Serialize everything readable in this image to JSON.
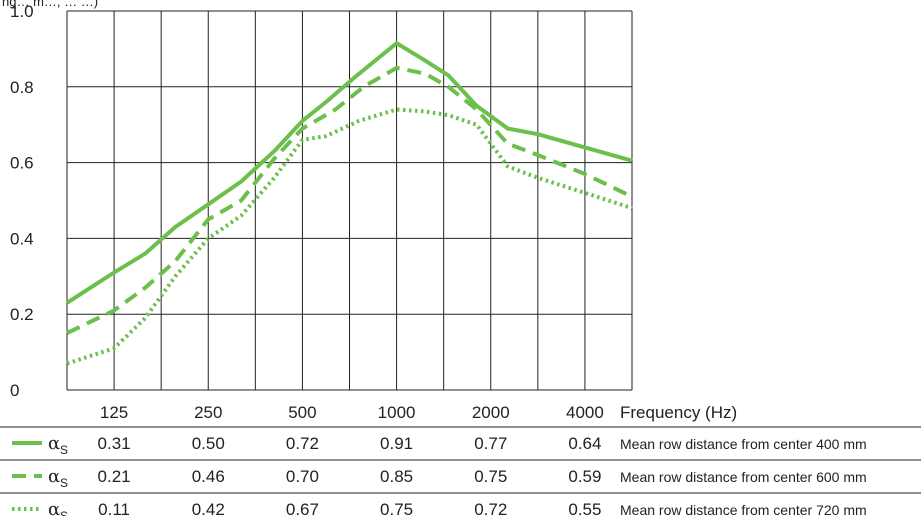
{
  "chart_data": {
    "type": "line",
    "title_fragment": "ng… m…, … …)",
    "x_unit_label": "Frequency (Hz)",
    "categories": [
      "125",
      "250",
      "500",
      "1000",
      "2000",
      "4000"
    ],
    "y_ticks": [
      "0",
      "0.2",
      "0.4",
      "0.6",
      "0.8",
      "1.0"
    ],
    "ylim": [
      0,
      1.0
    ],
    "grid": true,
    "color": "#6cbf4a",
    "series_symbol": "α",
    "series_subscript": "S",
    "series": [
      {
        "name": "Mean row distance from center 400 mm",
        "style": "solid",
        "values": [
          0.31,
          0.5,
          0.72,
          0.91,
          0.77,
          0.64
        ],
        "labels": [
          "0.31",
          "0.50",
          "0.72",
          "0.91",
          "0.77",
          "0.64"
        ],
        "curve": [
          [
            0.0,
            0.23
          ],
          [
            0.5,
            0.31
          ],
          [
            0.83,
            0.36
          ],
          [
            1.15,
            0.43
          ],
          [
            1.5,
            0.49
          ],
          [
            1.85,
            0.55
          ],
          [
            2.2,
            0.63
          ],
          [
            2.5,
            0.71
          ],
          [
            2.75,
            0.76
          ],
          [
            3.08,
            0.83
          ],
          [
            3.5,
            0.915
          ],
          [
            3.8,
            0.87
          ],
          [
            4.05,
            0.83
          ],
          [
            4.35,
            0.75
          ],
          [
            4.68,
            0.69
          ],
          [
            5.0,
            0.675
          ],
          [
            5.5,
            0.64
          ],
          [
            6.0,
            0.605
          ]
        ]
      },
      {
        "name": "Mean row distance from center 600 mm",
        "style": "dashed",
        "values": [
          0.21,
          0.46,
          0.7,
          0.85,
          0.75,
          0.59
        ],
        "labels": [
          "0.21",
          "0.46",
          "0.70",
          "0.85",
          "0.75",
          "0.59"
        ],
        "curve": [
          [
            0.0,
            0.15
          ],
          [
            0.5,
            0.21
          ],
          [
            0.83,
            0.27
          ],
          [
            1.15,
            0.34
          ],
          [
            1.5,
            0.45
          ],
          [
            1.85,
            0.5
          ],
          [
            2.2,
            0.61
          ],
          [
            2.5,
            0.69
          ],
          [
            2.85,
            0.74
          ],
          [
            3.15,
            0.8
          ],
          [
            3.5,
            0.85
          ],
          [
            3.8,
            0.835
          ],
          [
            4.05,
            0.8
          ],
          [
            4.35,
            0.74
          ],
          [
            4.68,
            0.65
          ],
          [
            5.0,
            0.62
          ],
          [
            5.5,
            0.57
          ],
          [
            6.0,
            0.51
          ]
        ]
      },
      {
        "name": "Mean row distance from center 720 mm",
        "style": "dotted",
        "values": [
          0.11,
          0.42,
          0.67,
          0.75,
          0.72,
          0.55
        ],
        "labels": [
          "0.11",
          "0.42",
          "0.67",
          "0.75",
          "0.72",
          "0.55"
        ],
        "curve": [
          [
            0.0,
            0.07
          ],
          [
            0.5,
            0.11
          ],
          [
            0.83,
            0.19
          ],
          [
            1.15,
            0.3
          ],
          [
            1.5,
            0.4
          ],
          [
            1.85,
            0.46
          ],
          [
            2.2,
            0.56
          ],
          [
            2.5,
            0.66
          ],
          [
            2.75,
            0.67
          ],
          [
            3.1,
            0.71
          ],
          [
            3.5,
            0.74
          ],
          [
            3.8,
            0.735
          ],
          [
            4.05,
            0.725
          ],
          [
            4.35,
            0.7
          ],
          [
            4.68,
            0.59
          ],
          [
            5.0,
            0.56
          ],
          [
            5.5,
            0.52
          ],
          [
            6.0,
            0.48
          ]
        ]
      }
    ]
  }
}
